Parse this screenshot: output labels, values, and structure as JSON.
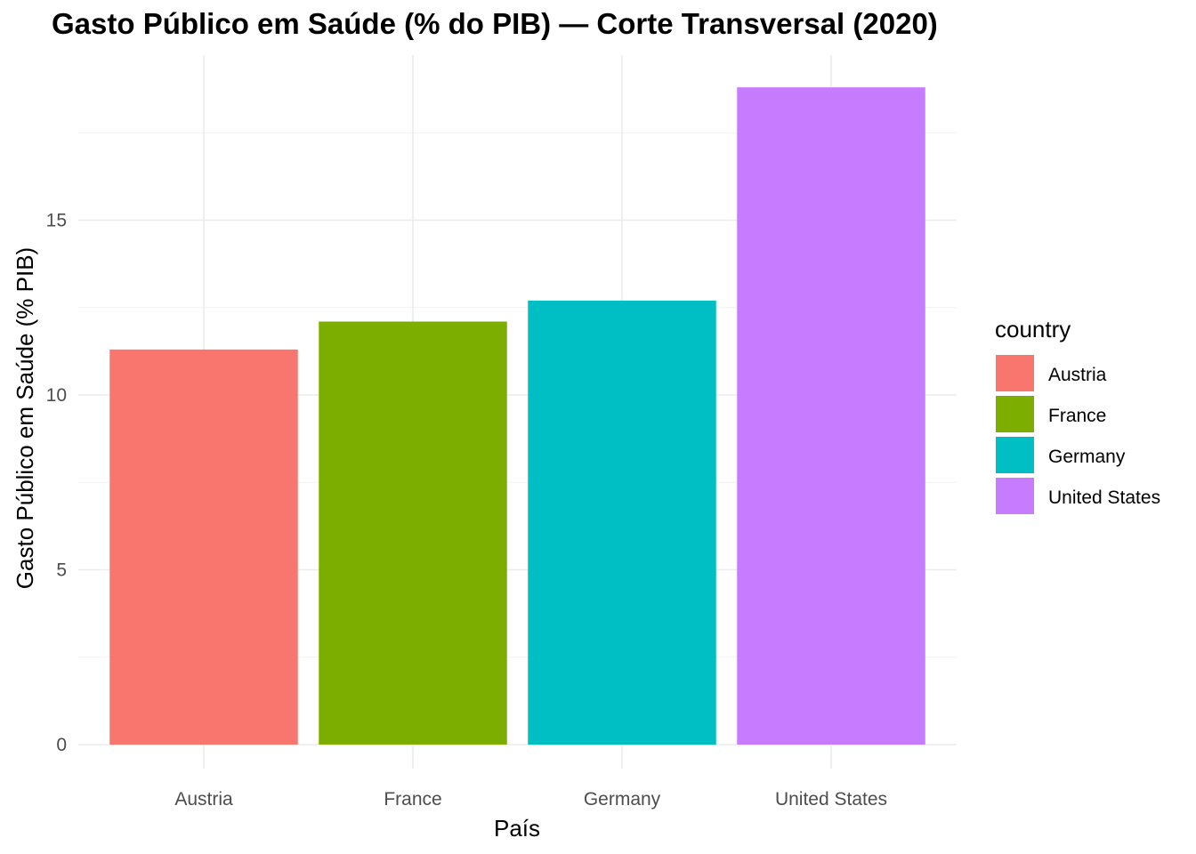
{
  "chart_data": {
    "type": "bar",
    "title": "Gasto Público em Saúde (% do PIB) — Corte Transversal (2020)",
    "xlabel": "País",
    "ylabel": "Gasto Público em Saúde (% PIB)",
    "categories": [
      "Austria",
      "France",
      "Germany",
      "United States"
    ],
    "values": [
      11.3,
      12.1,
      12.7,
      18.8
    ],
    "ylim": [
      0,
      19.7
    ],
    "yticks": [
      0,
      5,
      10,
      15
    ],
    "grid": true,
    "legend": {
      "title": "country",
      "position": "right",
      "entries": [
        "Austria",
        "France",
        "Germany",
        "United States"
      ]
    },
    "colors": {
      "Austria": "#F8766D",
      "France": "#7CAE00",
      "Germany": "#00BFC4",
      "United States": "#C77CFF"
    }
  }
}
